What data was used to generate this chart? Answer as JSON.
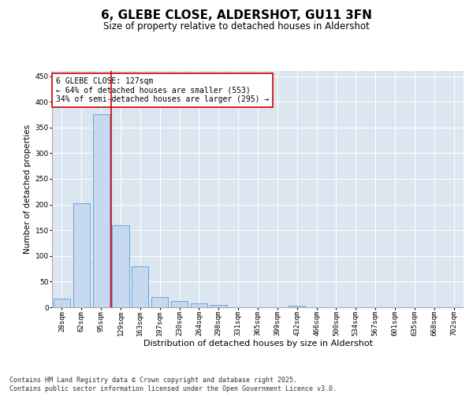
{
  "title": "6, GLEBE CLOSE, ALDERSHOT, GU11 3FN",
  "subtitle": "Size of property relative to detached houses in Aldershot",
  "xlabel": "Distribution of detached houses by size in Aldershot",
  "ylabel": "Number of detached properties",
  "bar_labels": [
    "28sqm",
    "62sqm",
    "95sqm",
    "129sqm",
    "163sqm",
    "197sqm",
    "230sqm",
    "264sqm",
    "298sqm",
    "331sqm",
    "365sqm",
    "399sqm",
    "432sqm",
    "466sqm",
    "500sqm",
    "534sqm",
    "567sqm",
    "601sqm",
    "635sqm",
    "668sqm",
    "702sqm"
  ],
  "bar_values": [
    17,
    202,
    375,
    160,
    80,
    20,
    13,
    7,
    4,
    0,
    0,
    0,
    3,
    0,
    0,
    0,
    0,
    0,
    0,
    0,
    0
  ],
  "bar_color": "#c6d9f0",
  "bar_edge_color": "#5b9bd5",
  "vline_color": "#cc0000",
  "ylim": [
    0,
    460
  ],
  "yticks": [
    0,
    50,
    100,
    150,
    200,
    250,
    300,
    350,
    400,
    450
  ],
  "annotation_text": "6 GLEBE CLOSE: 127sqm\n← 64% of detached houses are smaller (553)\n34% of semi-detached houses are larger (295) →",
  "annotation_box_color": "#ffffff",
  "annotation_box_edge_color": "#cc0000",
  "background_color": "#dce6f1",
  "footer_text": "Contains HM Land Registry data © Crown copyright and database right 2025.\nContains public sector information licensed under the Open Government Licence v3.0.",
  "title_fontsize": 11,
  "subtitle_fontsize": 8.5,
  "xlabel_fontsize": 8,
  "ylabel_fontsize": 7.5,
  "tick_fontsize": 6.5,
  "annotation_fontsize": 7,
  "footer_fontsize": 6
}
